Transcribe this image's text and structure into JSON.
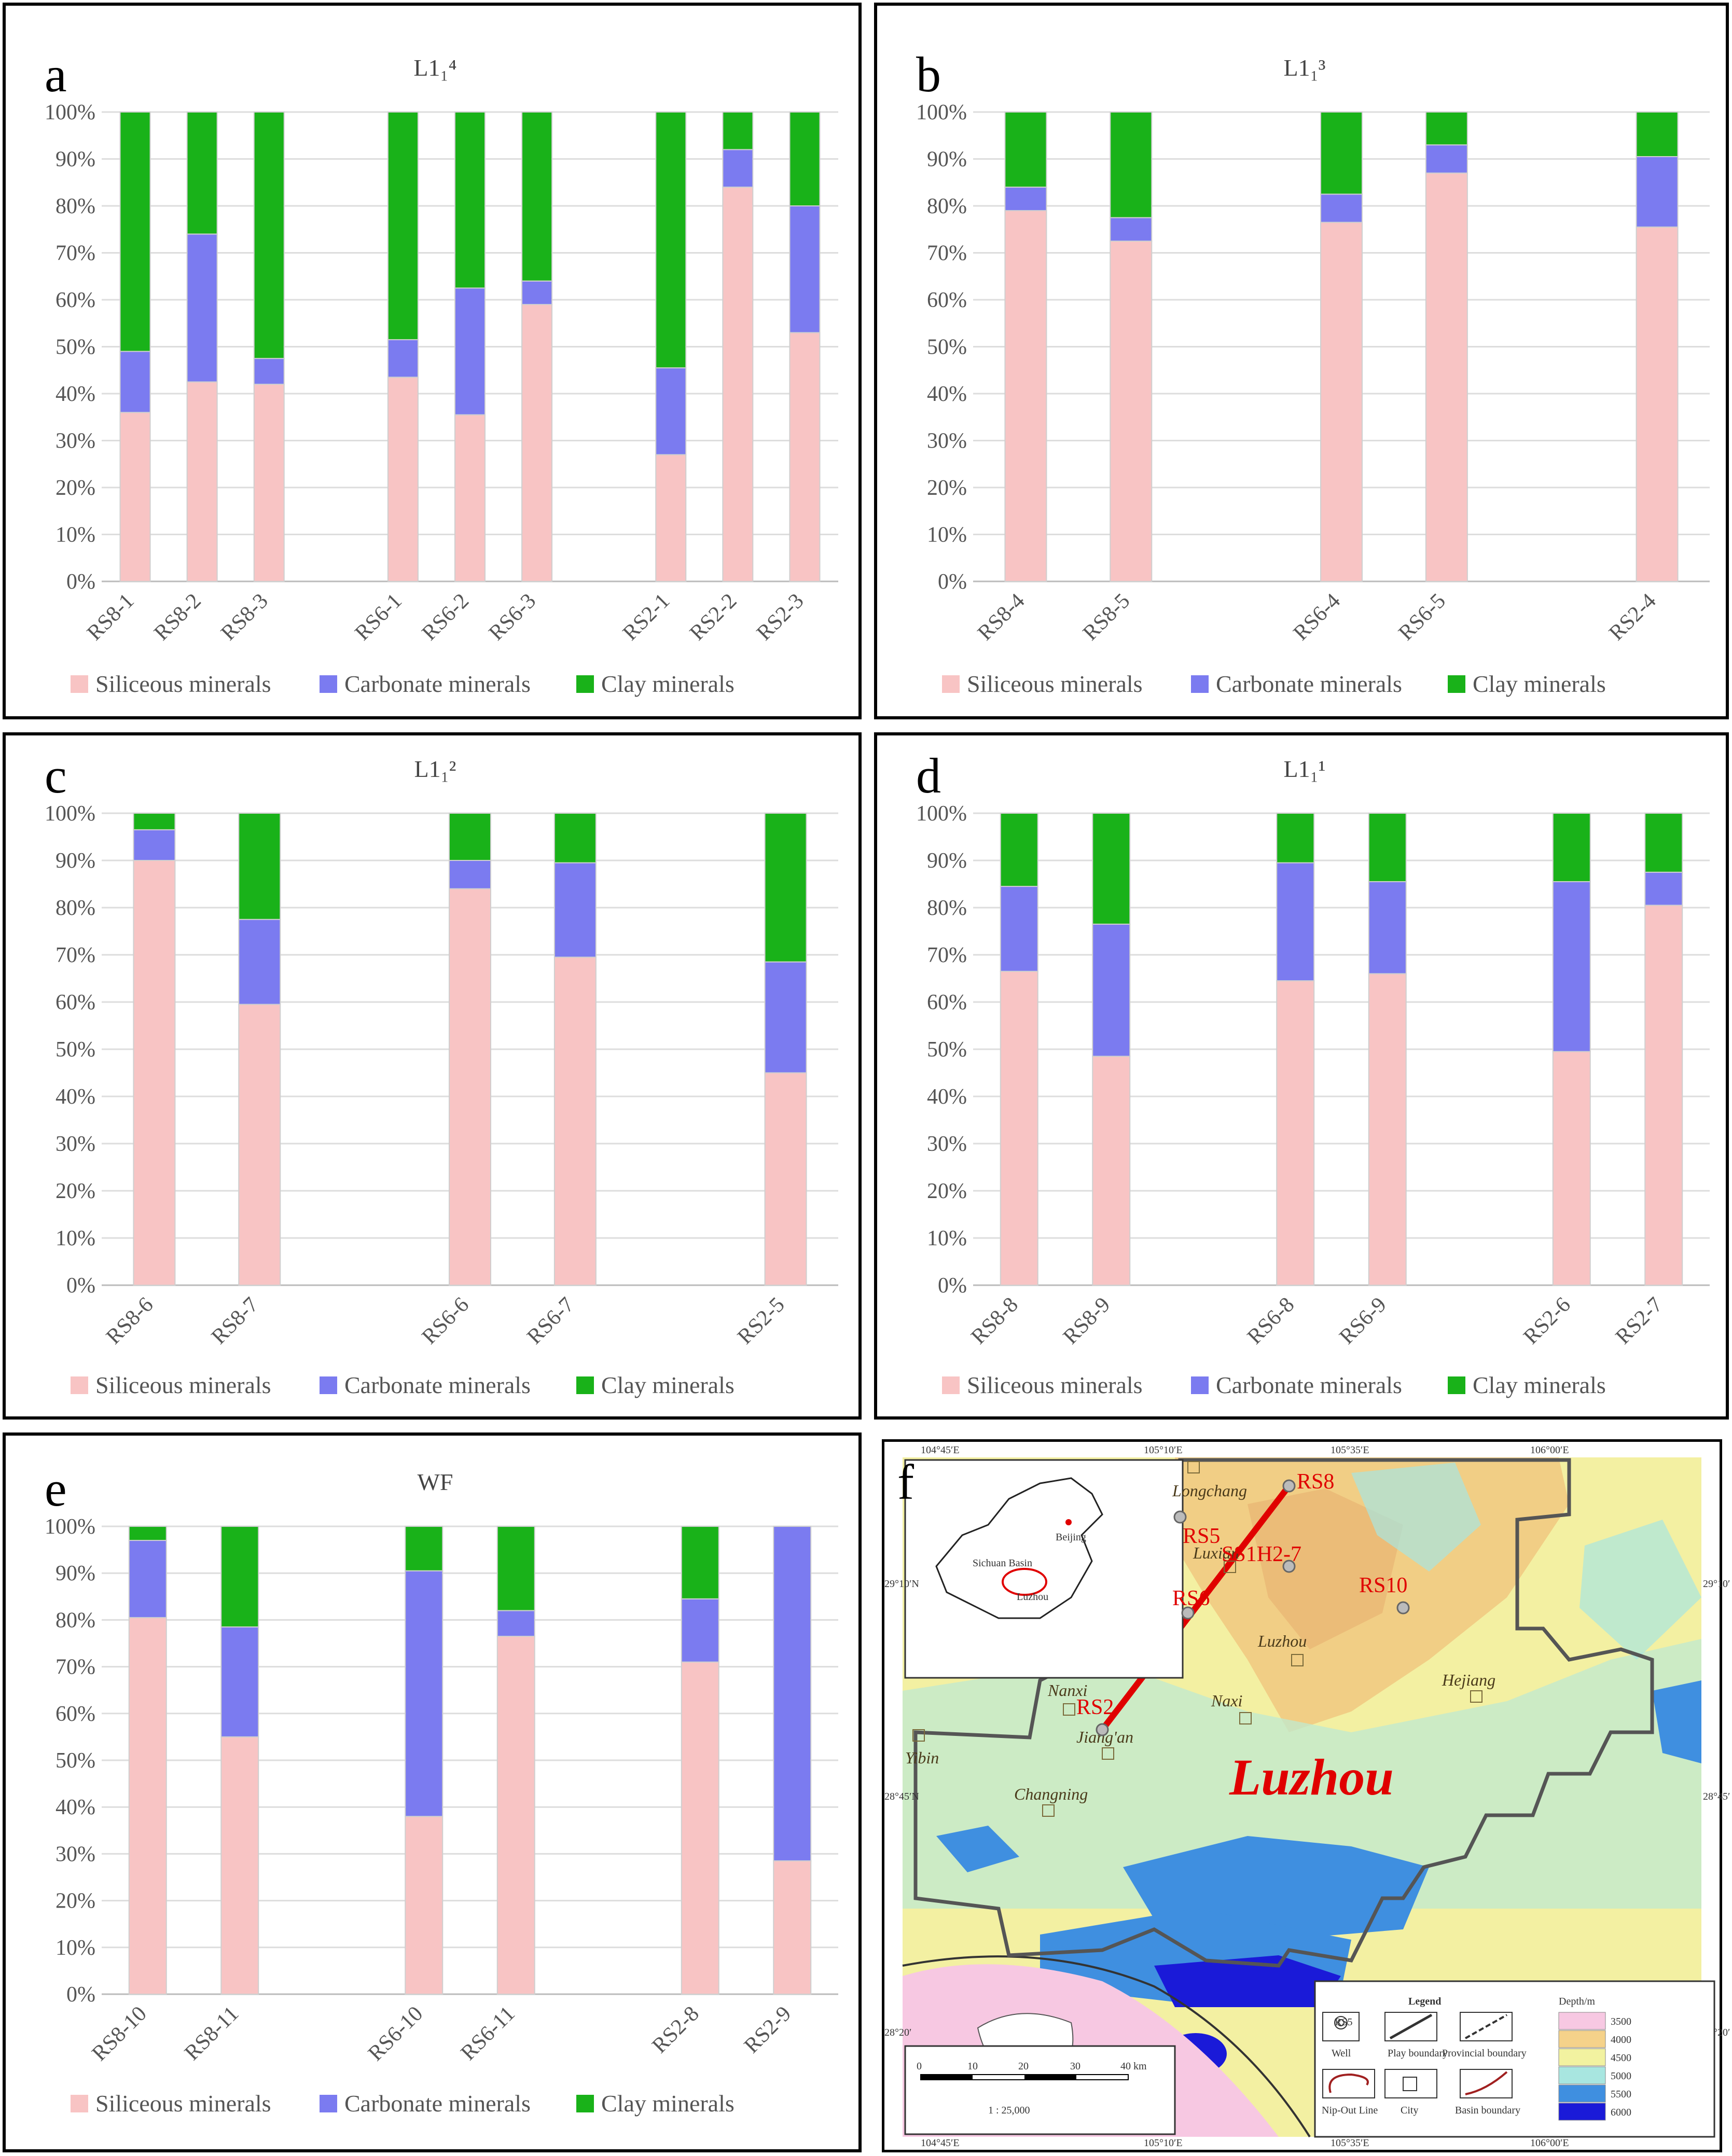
{
  "colors": {
    "siliceous": "#f8c4c4",
    "carbonate": "#7b7bf0",
    "clay": "#19b219"
  },
  "legend": [
    "Siliceous minerals",
    "Carbonate minerals",
    "Clay minerals"
  ],
  "y_ticks": [
    "0%",
    "10%",
    "20%",
    "30%",
    "40%",
    "50%",
    "60%",
    "70%",
    "80%",
    "90%",
    "100%"
  ],
  "chart_data": [
    {
      "label": "a",
      "title": "L1₁⁴",
      "type": "bar",
      "stacked": true,
      "ylim": [
        0,
        100
      ],
      "categories": [
        "RS8-1",
        "RS8-2",
        "RS8-3",
        "RS6-1",
        "RS6-2",
        "RS6-3",
        "RS2-1",
        "RS2-2",
        "RS2-3"
      ],
      "series": [
        {
          "name": "Siliceous minerals",
          "values": [
            36,
            42.5,
            42,
            43.5,
            35.5,
            59,
            27,
            84,
            53
          ]
        },
        {
          "name": "Carbonate minerals",
          "values": [
            13,
            31.5,
            5.5,
            8,
            27,
            5,
            18.5,
            8,
            27
          ]
        },
        {
          "name": "Clay minerals",
          "values": [
            51,
            26,
            52.5,
            48.5,
            37.5,
            36,
            54.5,
            8,
            20
          ]
        }
      ]
    },
    {
      "label": "b",
      "title": "L1₁³",
      "type": "bar",
      "stacked": true,
      "ylim": [
        0,
        100
      ],
      "categories": [
        "RS8-4",
        "RS8-5",
        "RS6-4",
        "RS6-5",
        "RS2-4"
      ],
      "series": [
        {
          "name": "Siliceous minerals",
          "values": [
            79,
            72.5,
            76.5,
            87,
            75.5
          ]
        },
        {
          "name": "Carbonate minerals",
          "values": [
            5,
            5,
            6,
            6,
            15
          ]
        },
        {
          "name": "Clay minerals",
          "values": [
            16,
            22.5,
            17.5,
            7,
            9.5
          ]
        }
      ]
    },
    {
      "label": "c",
      "title": "L1₁²",
      "type": "bar",
      "stacked": true,
      "ylim": [
        0,
        100
      ],
      "categories": [
        "RS8-6",
        "RS8-7",
        "RS6-6",
        "RS6-7",
        "RS2-5"
      ],
      "series": [
        {
          "name": "Siliceous minerals",
          "values": [
            90,
            59.5,
            84,
            69.5,
            45
          ]
        },
        {
          "name": "Carbonate minerals",
          "values": [
            6.5,
            18,
            6,
            20,
            23.5
          ]
        },
        {
          "name": "Clay minerals",
          "values": [
            3.5,
            22.5,
            10,
            10.5,
            31.5
          ]
        }
      ]
    },
    {
      "label": "d",
      "title": "L1₁¹",
      "type": "bar",
      "stacked": true,
      "ylim": [
        0,
        100
      ],
      "categories": [
        "RS8-8",
        "RS8-9",
        "RS6-8",
        "RS6-9",
        "RS2-6",
        "RS2-7"
      ],
      "series": [
        {
          "name": "Siliceous minerals",
          "values": [
            66.5,
            48.5,
            64.5,
            66,
            49.5,
            80.5
          ]
        },
        {
          "name": "Carbonate minerals",
          "values": [
            18,
            28,
            25,
            19.5,
            36,
            7
          ]
        },
        {
          "name": "Clay minerals",
          "values": [
            15.5,
            23.5,
            10.5,
            14.5,
            14.5,
            12.5
          ]
        }
      ]
    },
    {
      "label": "e",
      "title": "WF",
      "type": "bar",
      "stacked": true,
      "ylim": [
        0,
        100
      ],
      "categories": [
        "RS8-10",
        "RS8-11",
        "RS6-10",
        "RS6-11",
        "RS2-8",
        "RS2-9"
      ],
      "series": [
        {
          "name": "Siliceous minerals",
          "values": [
            80.5,
            55,
            38,
            76.5,
            71,
            28.5
          ]
        },
        {
          "name": "Carbonate minerals",
          "values": [
            16.5,
            23.5,
            52.5,
            5.5,
            13.5,
            71.5
          ]
        },
        {
          "name": "Clay minerals",
          "values": [
            3,
            21.5,
            9.5,
            18,
            15.5,
            0
          ]
        }
      ]
    }
  ],
  "map": {
    "label": "f",
    "region_title": "Luzhou",
    "top_coords": [
      "104°45′E",
      "105°10′E",
      "105°35′E",
      "106°00′E"
    ],
    "bottom_coords": [
      "104°45′E",
      "105°10′E",
      "105°35′E",
      "106°00′E"
    ],
    "left_coords": [
      "29°10′N",
      "28°45′N",
      "28°20′"
    ],
    "right_coords": [
      "29°10′",
      "28°45′",
      "28°20′"
    ],
    "inset": {
      "capital": "Beijing",
      "basin": "Sichuan Basin",
      "city": "Luzhou"
    },
    "towns": [
      "Longchang",
      "Luxian",
      "Luzhou",
      "Nanxi",
      "Naxi",
      "Hejiang",
      "Yibin",
      "Jiang'an",
      "Changning"
    ],
    "wells": [
      "RS8",
      "RS5",
      "SS1H2-7",
      "RS10",
      "RS6",
      "RS2"
    ],
    "scale": {
      "ticks": [
        "0",
        "10",
        "20",
        "30",
        "40 km"
      ],
      "ratio": "1 : 25,000"
    },
    "legend": {
      "title": "Legend",
      "items": [
        "Well",
        "Play boundary",
        "Provincial boundary",
        "Nip-Out Line",
        "City",
        "Basin boundary"
      ],
      "well_symbol": "RS5"
    },
    "depth": {
      "title": "Depth/m",
      "values": [
        "3500",
        "4000",
        "4500",
        "5000",
        "5500",
        "6000"
      ],
      "colors": [
        "#f7c8e2",
        "#f5d28a",
        "#f2f2a0",
        "#a8e6e0",
        "#3f8fe0",
        "#1a1ad8"
      ]
    }
  }
}
